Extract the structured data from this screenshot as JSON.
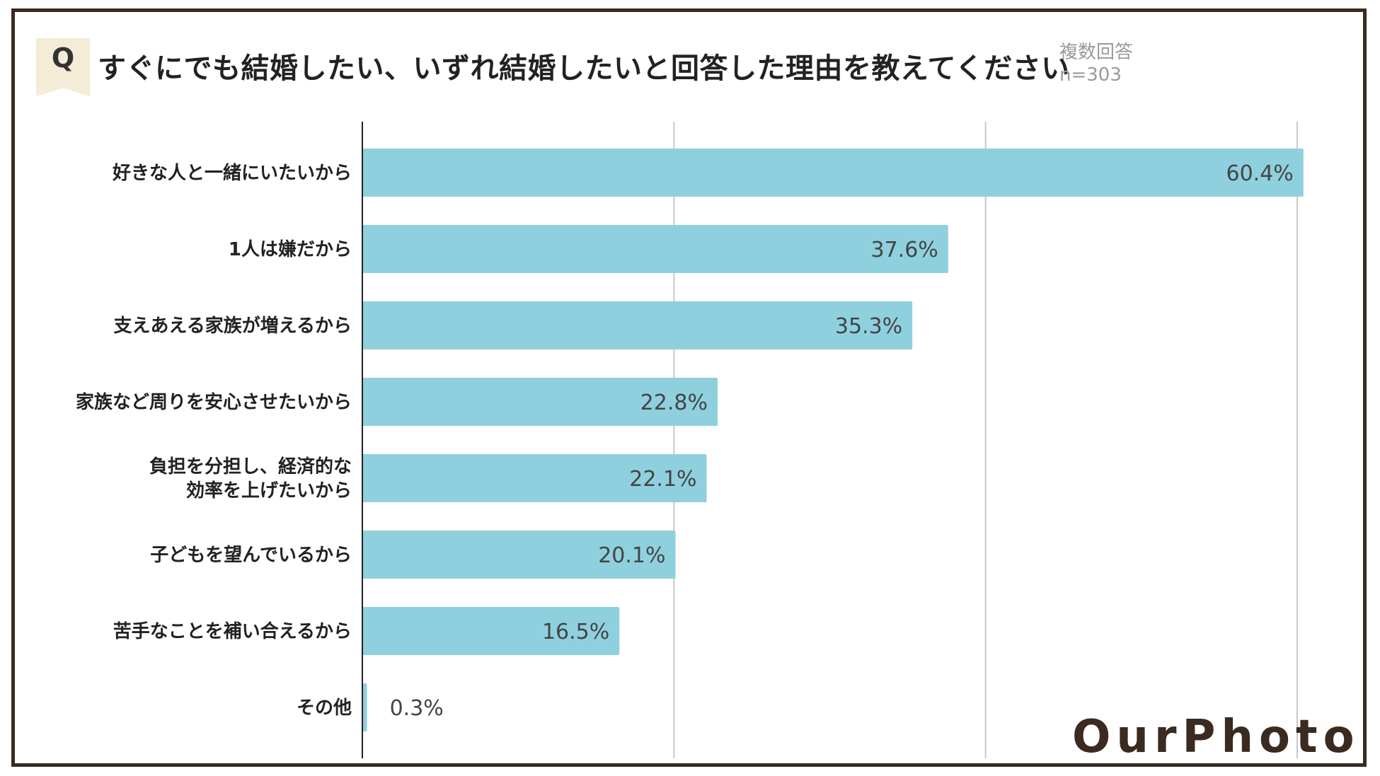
{
  "header": {
    "q_label": "Q",
    "title": "すぐにでも結婚したい、いずれ結婚したいと回答した理由を教えてください",
    "note_line1": "複数回答",
    "note_line2": "n=303"
  },
  "logo": {
    "text": "OurPhoto"
  },
  "colors": {
    "bar": "#8fd0df",
    "grid": "#c8c8c8",
    "axis": "#222222",
    "frame": "#3a2a20",
    "badge": "#f4ecd6"
  },
  "chart_data": {
    "type": "bar",
    "orientation": "horizontal",
    "categories": [
      [
        "好きな人と一緒にいたいから"
      ],
      [
        "1人は嫌だから"
      ],
      [
        "支えあえる家族が増えるから"
      ],
      [
        "家族など周りを安心させたいから"
      ],
      [
        "負担を分担し、経済的な",
        "効率を上げたいから"
      ],
      [
        "子どもを望んでいるから"
      ],
      [
        "苦手なことを補い合えるから"
      ],
      [
        "その他"
      ]
    ],
    "values": [
      60.4,
      37.6,
      35.3,
      22.8,
      22.1,
      20.1,
      16.5,
      0.3
    ],
    "value_labels": [
      "60.4%",
      "37.6%",
      "35.3%",
      "22.8%",
      "22.1%",
      "20.1%",
      "16.5%",
      "0.3%"
    ],
    "xlim": [
      0,
      60
    ],
    "grid": true,
    "gridline_values": [
      20,
      40,
      60
    ],
    "title": "",
    "xlabel": "",
    "ylabel": ""
  }
}
